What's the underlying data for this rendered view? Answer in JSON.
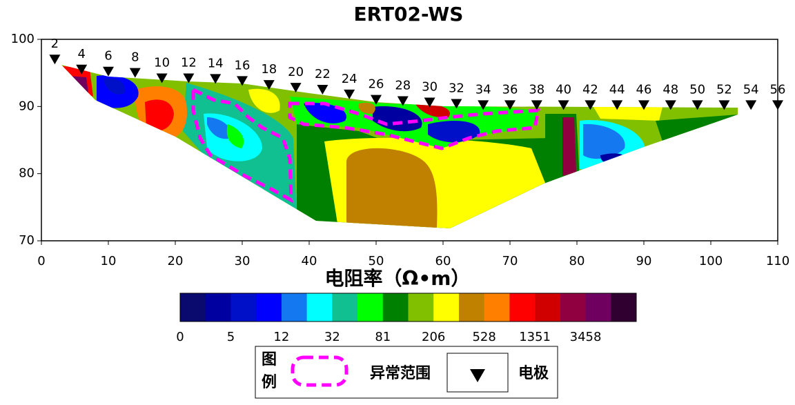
{
  "chart_data": {
    "type": "contour",
    "title": "ERT02-WS",
    "xlim": [
      0,
      110
    ],
    "ylim": [
      70,
      100
    ],
    "xticks": [
      0,
      10,
      20,
      30,
      40,
      50,
      60,
      70,
      80,
      90,
      100,
      110
    ],
    "yticks": [
      70,
      80,
      90,
      100
    ],
    "electrodes": {
      "labels": [
        2,
        4,
        6,
        8,
        10,
        12,
        14,
        16,
        18,
        20,
        22,
        24,
        26,
        28,
        30,
        32,
        34,
        36,
        38,
        40,
        42,
        44,
        46,
        48,
        50,
        52,
        54,
        56
      ],
      "x": [
        2,
        6,
        10,
        14,
        18,
        22,
        26,
        30,
        34,
        38,
        42,
        46,
        50,
        54,
        58,
        62,
        66,
        70,
        74,
        78,
        82,
        86,
        90,
        94,
        98,
        102,
        106,
        110
      ],
      "y": [
        97,
        95.5,
        95.2,
        95,
        94.2,
        94.2,
        94.1,
        93.8,
        93.2,
        92.8,
        92.5,
        91.8,
        91,
        90.8,
        90.6,
        90.4,
        90.2,
        90.2,
        90.2,
        90.2,
        90.2,
        90.2,
        90.2,
        90.2,
        90.2,
        90.2,
        90.2,
        90.2
      ]
    },
    "colorbar": {
      "title": "电阻率（Ω•m）",
      "colors": [
        "#0a0a6e",
        "#0000a0",
        "#0010c8",
        "#0000ff",
        "#1478f0",
        "#00ffff",
        "#10c090",
        "#00ff00",
        "#008000",
        "#80c000",
        "#ffff00",
        "#c08000",
        "#ff8000",
        "#ff0000",
        "#d00000",
        "#900040",
        "#700060",
        "#300030"
      ],
      "ticks": [
        0,
        5,
        12,
        32,
        81,
        206,
        528,
        1351,
        3458
      ]
    },
    "legend": {
      "title_top": "图",
      "title_bottom": "例",
      "anomaly": "异常范围",
      "electrode": "电极"
    }
  }
}
